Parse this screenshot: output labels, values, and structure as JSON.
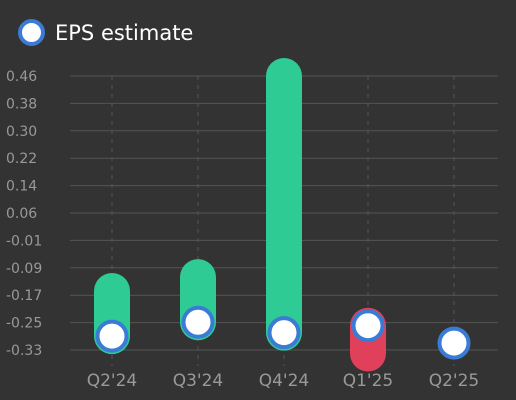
{
  "legend": {
    "label": "EPS estimate",
    "icon": "circle-marker-icon"
  },
  "colors": {
    "background": "#333333",
    "beat": "#2ecc94",
    "miss": "#e0405a",
    "marker_fill": "#ffffff",
    "marker_stroke": "#3a7bd5",
    "grid": "#555555",
    "tick_text": "#999999"
  },
  "chart_data": {
    "type": "bar",
    "title": "",
    "xlabel": "",
    "ylabel": "",
    "categories": [
      "Q2'24",
      "Q3'24",
      "Q4'24",
      "Q1'25",
      "Q2'25"
    ],
    "y_ticks": [
      "0.46",
      "0.38",
      "0.30",
      "0.22",
      "0.14",
      "0.06",
      "-0.01",
      "-0.09",
      "-0.17",
      "-0.25",
      "-0.33"
    ],
    "ylim": [
      -0.33,
      0.46
    ],
    "grid": true,
    "legend_position": "top-left",
    "series": [
      {
        "name": "EPS estimate",
        "values": [
          -0.29,
          -0.25,
          -0.28,
          -0.26,
          -0.31
        ]
      },
      {
        "values": [
          -0.16,
          -0.12,
          0.46,
          -0.34,
          -0.31
        ]
      }
    ]
  }
}
